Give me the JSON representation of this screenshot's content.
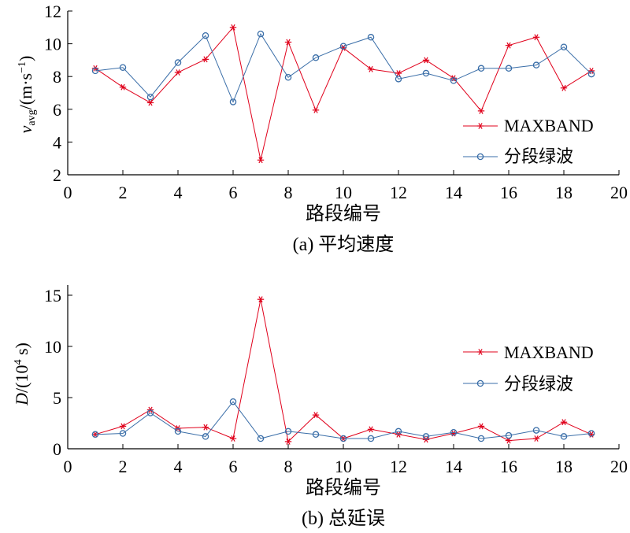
{
  "colors": {
    "maxband": "#e0001b",
    "segmented": "#3a6ea8",
    "axis": "#000000"
  },
  "chart_data": [
    {
      "type": "line",
      "caption": "(a) 平均速度",
      "xlabel": "路段编号",
      "ylabel": "v_avg/(m·s⁻¹)",
      "ylabel_parts": {
        "v": "v",
        "sub": "avg",
        "unit": "/(m·s",
        "sup": "−1",
        "close": ")"
      },
      "xlim": [
        0,
        20
      ],
      "ylim": [
        2,
        12
      ],
      "xticks": [
        0,
        2,
        4,
        6,
        8,
        10,
        12,
        14,
        16,
        18,
        20
      ],
      "yticks": [
        2,
        4,
        6,
        8,
        10,
        12
      ],
      "legend_position": "lower-right",
      "x": [
        1,
        2,
        3,
        4,
        5,
        6,
        7,
        8,
        9,
        10,
        11,
        12,
        13,
        14,
        15,
        16,
        17,
        18,
        19
      ],
      "series": [
        {
          "name": "MAXBAND",
          "marker": "star",
          "color": "#e0001b",
          "values": [
            8.5,
            7.35,
            6.4,
            8.25,
            9.05,
            11.0,
            2.9,
            10.1,
            5.95,
            9.75,
            8.45,
            8.2,
            9.0,
            7.9,
            5.9,
            9.9,
            10.4,
            7.3,
            8.35
          ]
        },
        {
          "name": "分段绿波",
          "marker": "circle",
          "color": "#3a6ea8",
          "values": [
            8.35,
            8.55,
            6.75,
            8.85,
            10.5,
            6.45,
            10.6,
            7.95,
            9.15,
            9.85,
            10.4,
            7.85,
            8.2,
            7.75,
            8.5,
            8.5,
            8.7,
            9.8,
            8.15
          ]
        }
      ]
    },
    {
      "type": "line",
      "caption": "(b) 总延误",
      "xlabel": "路段编号",
      "ylabel": "D/(10⁴ s)",
      "ylabel_parts": {
        "v": "D",
        "unit": "/(10",
        "sup": "4",
        "close": " s)"
      },
      "xlim": [
        0,
        20
      ],
      "ylim": [
        0,
        16
      ],
      "xticks": [
        0,
        2,
        4,
        6,
        8,
        10,
        12,
        14,
        16,
        18,
        20
      ],
      "yticks": [
        0,
        5,
        10,
        15
      ],
      "legend_position": "right",
      "x": [
        1,
        2,
        3,
        4,
        5,
        6,
        7,
        8,
        9,
        10,
        11,
        12,
        13,
        14,
        15,
        16,
        17,
        18,
        19
      ],
      "series": [
        {
          "name": "MAXBAND",
          "marker": "star",
          "color": "#e0001b",
          "values": [
            1.4,
            2.2,
            3.8,
            2.0,
            2.1,
            1.0,
            14.6,
            0.7,
            3.3,
            1.0,
            1.9,
            1.4,
            0.9,
            1.5,
            2.2,
            0.8,
            1.0,
            2.6,
            1.4
          ]
        },
        {
          "name": "分段绿波",
          "marker": "circle",
          "color": "#3a6ea8",
          "values": [
            1.4,
            1.5,
            3.5,
            1.7,
            1.2,
            4.6,
            1.0,
            1.7,
            1.4,
            1.0,
            1.0,
            1.7,
            1.2,
            1.6,
            1.0,
            1.3,
            1.8,
            1.2,
            1.5
          ]
        }
      ]
    }
  ]
}
